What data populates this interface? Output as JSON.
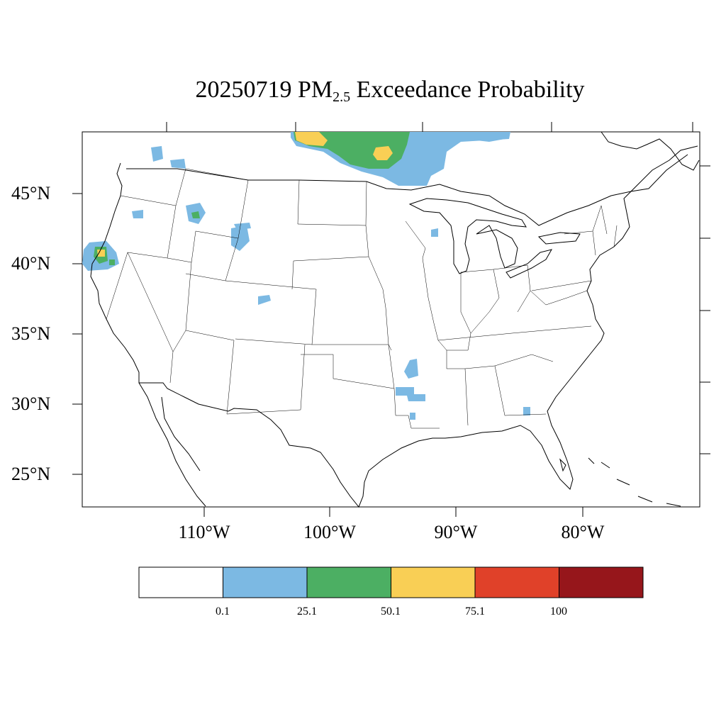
{
  "title": {
    "date": "20250719",
    "pollutant": "PM",
    "subscript": "2.5",
    "rest": "Exceedance Probability"
  },
  "axes": {
    "lat_labels": [
      "45°N",
      "40°N",
      "35°N",
      "30°N",
      "25°N"
    ],
    "lon_labels": [
      "110°W",
      "100°W",
      "90°W",
      "80°W"
    ]
  },
  "colorbar": {
    "labels": [
      "0.1",
      "25.1",
      "50.1",
      "75.1",
      "100"
    ],
    "colors": [
      "#ffffff",
      "#7cb9e3",
      "#4caf63",
      "#f9cf55",
      "#e04129",
      "#96161b"
    ]
  }
}
